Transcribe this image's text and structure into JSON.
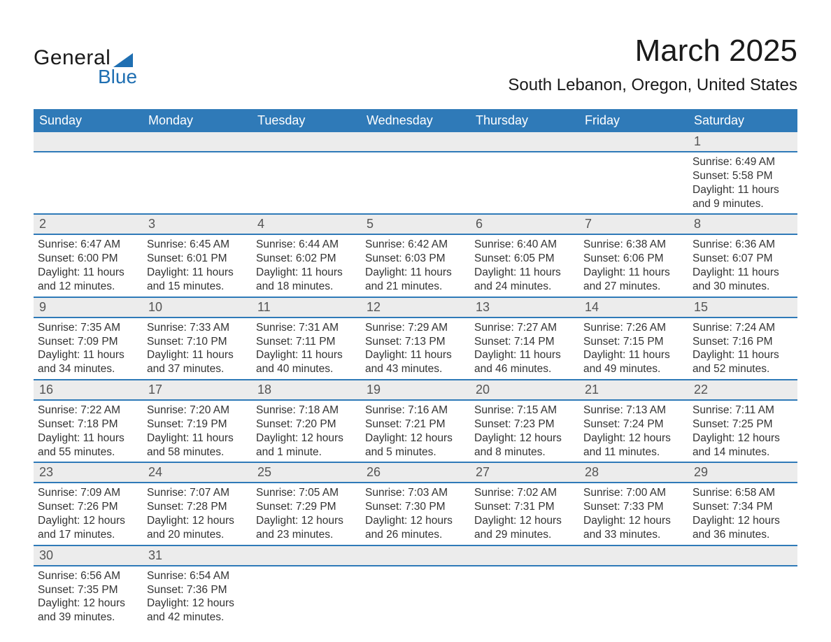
{
  "logo": {
    "word1": "General",
    "word2": "Blue"
  },
  "title": "March 2025",
  "location": "South Lebanon, Oregon, United States",
  "header_bg": "#2f7ab8",
  "header_fg": "#ffffff",
  "daynum_bg": "#ececec",
  "row_border": "#2f7ab8",
  "text_color": "#333333",
  "font_family": "Arial",
  "title_fontsize": 44,
  "location_fontsize": 24,
  "header_fontsize": 18,
  "cell_fontsize": 15.5,
  "columns": [
    "Sunday",
    "Monday",
    "Tuesday",
    "Wednesday",
    "Thursday",
    "Friday",
    "Saturday"
  ],
  "weeks": [
    [
      null,
      null,
      null,
      null,
      null,
      null,
      {
        "n": "1",
        "sunrise": "6:49 AM",
        "sunset": "5:58 PM",
        "daylight": "11 hours and 9 minutes."
      }
    ],
    [
      {
        "n": "2",
        "sunrise": "6:47 AM",
        "sunset": "6:00 PM",
        "daylight": "11 hours and 12 minutes."
      },
      {
        "n": "3",
        "sunrise": "6:45 AM",
        "sunset": "6:01 PM",
        "daylight": "11 hours and 15 minutes."
      },
      {
        "n": "4",
        "sunrise": "6:44 AM",
        "sunset": "6:02 PM",
        "daylight": "11 hours and 18 minutes."
      },
      {
        "n": "5",
        "sunrise": "6:42 AM",
        "sunset": "6:03 PM",
        "daylight": "11 hours and 21 minutes."
      },
      {
        "n": "6",
        "sunrise": "6:40 AM",
        "sunset": "6:05 PM",
        "daylight": "11 hours and 24 minutes."
      },
      {
        "n": "7",
        "sunrise": "6:38 AM",
        "sunset": "6:06 PM",
        "daylight": "11 hours and 27 minutes."
      },
      {
        "n": "8",
        "sunrise": "6:36 AM",
        "sunset": "6:07 PM",
        "daylight": "11 hours and 30 minutes."
      }
    ],
    [
      {
        "n": "9",
        "sunrise": "7:35 AM",
        "sunset": "7:09 PM",
        "daylight": "11 hours and 34 minutes."
      },
      {
        "n": "10",
        "sunrise": "7:33 AM",
        "sunset": "7:10 PM",
        "daylight": "11 hours and 37 minutes."
      },
      {
        "n": "11",
        "sunrise": "7:31 AM",
        "sunset": "7:11 PM",
        "daylight": "11 hours and 40 minutes."
      },
      {
        "n": "12",
        "sunrise": "7:29 AM",
        "sunset": "7:13 PM",
        "daylight": "11 hours and 43 minutes."
      },
      {
        "n": "13",
        "sunrise": "7:27 AM",
        "sunset": "7:14 PM",
        "daylight": "11 hours and 46 minutes."
      },
      {
        "n": "14",
        "sunrise": "7:26 AM",
        "sunset": "7:15 PM",
        "daylight": "11 hours and 49 minutes."
      },
      {
        "n": "15",
        "sunrise": "7:24 AM",
        "sunset": "7:16 PM",
        "daylight": "11 hours and 52 minutes."
      }
    ],
    [
      {
        "n": "16",
        "sunrise": "7:22 AM",
        "sunset": "7:18 PM",
        "daylight": "11 hours and 55 minutes."
      },
      {
        "n": "17",
        "sunrise": "7:20 AM",
        "sunset": "7:19 PM",
        "daylight": "11 hours and 58 minutes."
      },
      {
        "n": "18",
        "sunrise": "7:18 AM",
        "sunset": "7:20 PM",
        "daylight": "12 hours and 1 minute."
      },
      {
        "n": "19",
        "sunrise": "7:16 AM",
        "sunset": "7:21 PM",
        "daylight": "12 hours and 5 minutes."
      },
      {
        "n": "20",
        "sunrise": "7:15 AM",
        "sunset": "7:23 PM",
        "daylight": "12 hours and 8 minutes."
      },
      {
        "n": "21",
        "sunrise": "7:13 AM",
        "sunset": "7:24 PM",
        "daylight": "12 hours and 11 minutes."
      },
      {
        "n": "22",
        "sunrise": "7:11 AM",
        "sunset": "7:25 PM",
        "daylight": "12 hours and 14 minutes."
      }
    ],
    [
      {
        "n": "23",
        "sunrise": "7:09 AM",
        "sunset": "7:26 PM",
        "daylight": "12 hours and 17 minutes."
      },
      {
        "n": "24",
        "sunrise": "7:07 AM",
        "sunset": "7:28 PM",
        "daylight": "12 hours and 20 minutes."
      },
      {
        "n": "25",
        "sunrise": "7:05 AM",
        "sunset": "7:29 PM",
        "daylight": "12 hours and 23 minutes."
      },
      {
        "n": "26",
        "sunrise": "7:03 AM",
        "sunset": "7:30 PM",
        "daylight": "12 hours and 26 minutes."
      },
      {
        "n": "27",
        "sunrise": "7:02 AM",
        "sunset": "7:31 PM",
        "daylight": "12 hours and 29 minutes."
      },
      {
        "n": "28",
        "sunrise": "7:00 AM",
        "sunset": "7:33 PM",
        "daylight": "12 hours and 33 minutes."
      },
      {
        "n": "29",
        "sunrise": "6:58 AM",
        "sunset": "7:34 PM",
        "daylight": "12 hours and 36 minutes."
      }
    ],
    [
      {
        "n": "30",
        "sunrise": "6:56 AM",
        "sunset": "7:35 PM",
        "daylight": "12 hours and 39 minutes."
      },
      {
        "n": "31",
        "sunrise": "6:54 AM",
        "sunset": "7:36 PM",
        "daylight": "12 hours and 42 minutes."
      },
      null,
      null,
      null,
      null,
      null
    ]
  ],
  "labels": {
    "sunrise": "Sunrise: ",
    "sunset": "Sunset: ",
    "daylight": "Daylight: "
  }
}
